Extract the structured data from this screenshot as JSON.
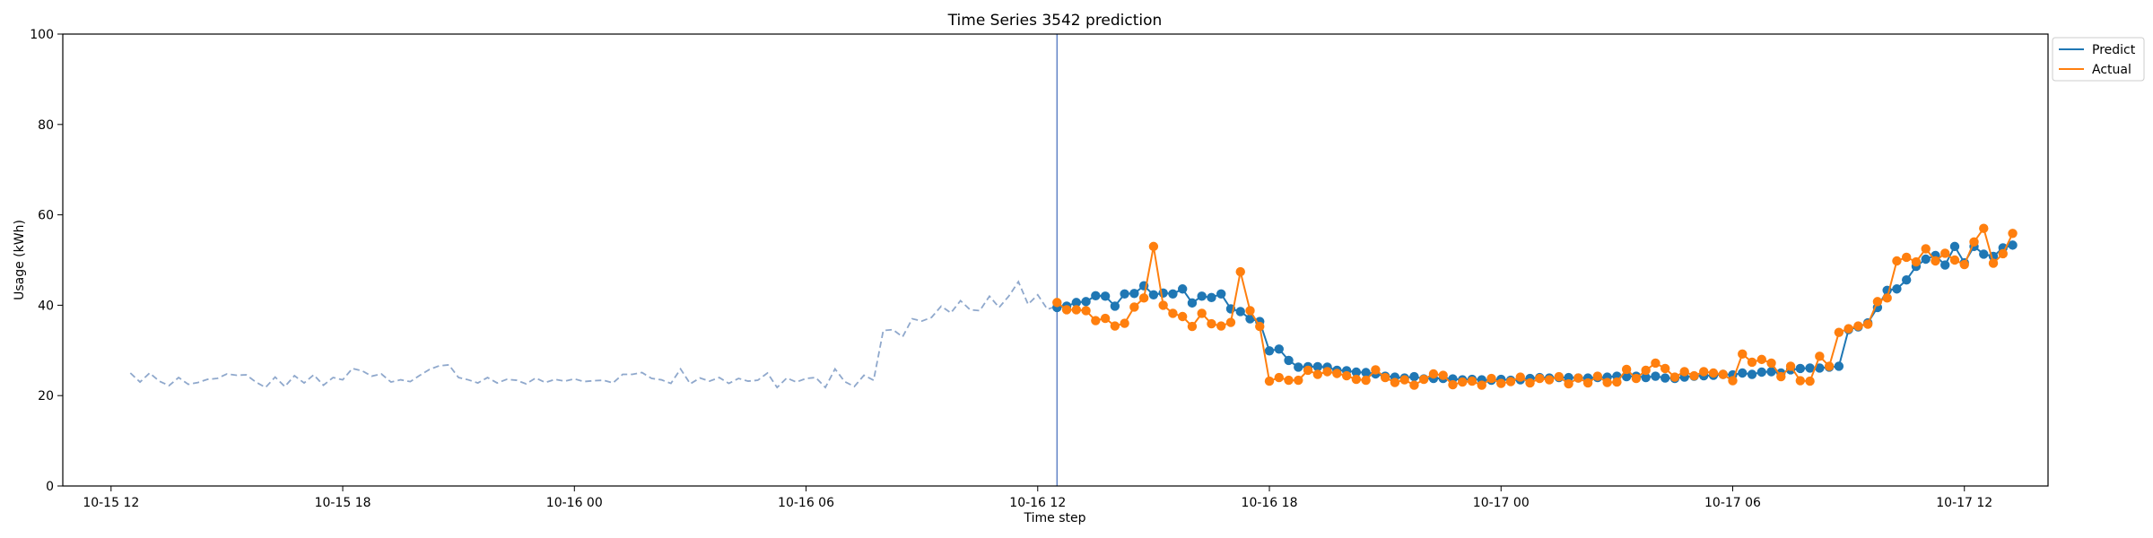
{
  "chart_data": {
    "type": "line",
    "title": "Time Series 3542 prediction",
    "xlabel": "Time step",
    "ylabel": "Usage (kWh)",
    "ylim": [
      0,
      100
    ],
    "x_range": [
      "2023-10-15T10:45",
      "2023-10-17T14:10"
    ],
    "x_ticks": [
      {
        "t": "2023-10-15T12:00",
        "label": "10-15 12"
      },
      {
        "t": "2023-10-15T18:00",
        "label": "10-15 18"
      },
      {
        "t": "2023-10-16T00:00",
        "label": "10-16 00"
      },
      {
        "t": "2023-10-16T06:00",
        "label": "10-16 06"
      },
      {
        "t": "2023-10-16T12:00",
        "label": "10-16 12"
      },
      {
        "t": "2023-10-16T18:00",
        "label": "10-16 18"
      },
      {
        "t": "2023-10-17T00:00",
        "label": "10-17 00"
      },
      {
        "t": "2023-10-17T06:00",
        "label": "10-17 06"
      },
      {
        "t": "2023-10-17T12:00",
        "label": "10-17 12"
      }
    ],
    "y_ticks": [
      0,
      20,
      40,
      60,
      80,
      100
    ],
    "grid": false,
    "legend": "outside-top-right",
    "split_time": "2023-10-16T12:30",
    "history": {
      "start": "2023-10-15T12:30",
      "step_minutes": 15,
      "color": "#8fa8cc",
      "values": [
        25.0,
        23.0,
        25.0,
        23.2,
        22.2,
        24.0,
        22.5,
        22.9,
        23.6,
        23.8,
        24.8,
        24.5,
        24.6,
        23.0,
        21.8,
        24.1,
        22.0,
        24.4,
        22.8,
        24.6,
        22.3,
        24.0,
        23.5,
        26.0,
        25.5,
        24.3,
        24.8,
        23.0,
        23.5,
        23.1,
        24.5,
        25.8,
        26.6,
        26.8,
        24.0,
        23.5,
        22.8,
        24.0,
        22.8,
        23.6,
        23.4,
        22.6,
        23.9,
        22.9,
        23.6,
        23.2,
        23.7,
        23.1,
        23.3,
        23.4,
        22.8,
        24.7,
        24.7,
        25.1,
        23.8,
        23.5,
        22.7,
        25.9,
        22.6,
        23.9,
        23.2,
        24.0,
        22.7,
        23.8,
        23.2,
        23.4,
        25.0,
        21.8,
        23.9,
        23.0,
        23.8,
        24.0,
        21.8,
        25.9,
        23.1,
        22.0,
        24.5,
        23.4,
        34.4,
        34.6,
        33.0,
        37.0,
        36.5,
        37.3,
        39.8,
        38.3,
        41.0,
        39.0,
        38.8,
        42.0,
        39.5,
        42.0,
        45.2,
        40.2,
        42.3,
        39.1,
        39.8
      ]
    },
    "series": [
      {
        "name": "Predict",
        "color": "#1f77b4",
        "start": "2023-10-16T12:30",
        "step_minutes": 15,
        "values": [
          39.5,
          39.8,
          40.6,
          40.8,
          42.1,
          42.0,
          39.8,
          42.5,
          42.6,
          44.3,
          42.3,
          42.7,
          42.5,
          43.6,
          40.5,
          42.0,
          41.7,
          42.5,
          39.2,
          38.6,
          37.0,
          36.4,
          29.9,
          30.3,
          27.8,
          26.3,
          26.4,
          26.4,
          26.3,
          25.6,
          25.5,
          25.2,
          25.1,
          24.8,
          24.3,
          24.1,
          23.9,
          24.2,
          23.7,
          23.8,
          23.8,
          23.7,
          23.5,
          23.6,
          23.5,
          23.4,
          23.6,
          23.4,
          23.5,
          23.8,
          24.0,
          23.9,
          24.0,
          24.0,
          23.9,
          23.9,
          24.0,
          24.1,
          24.3,
          24.2,
          24.3,
          24.0,
          24.3,
          23.9,
          23.8,
          24.1,
          24.3,
          24.4,
          24.5,
          24.7,
          24.6,
          25.0,
          24.7,
          25.2,
          25.3,
          25.0,
          25.7,
          26.0,
          26.1,
          26.1,
          26.3,
          26.5,
          34.6,
          35.2,
          36.1,
          39.5,
          43.3,
          43.6,
          45.6,
          48.6,
          50.2,
          51.0,
          48.9,
          53.0,
          49.4,
          53.0,
          51.3,
          50.8,
          52.7,
          53.3
        ]
      },
      {
        "name": "Actual",
        "color": "#ff7f0e",
        "start": "2023-10-16T12:30",
        "step_minutes": 15,
        "values": [
          40.6,
          39.0,
          39.0,
          38.8,
          36.6,
          37.1,
          35.4,
          36.0,
          39.6,
          41.6,
          53.0,
          40.0,
          38.2,
          37.5,
          35.3,
          38.2,
          35.9,
          35.4,
          36.2,
          47.4,
          38.8,
          35.3,
          23.2,
          24.0,
          23.4,
          23.4,
          25.6,
          24.7,
          25.3,
          24.9,
          24.4,
          23.6,
          23.4,
          25.7,
          24.0,
          22.9,
          23.5,
          22.3,
          23.6,
          24.8,
          24.5,
          22.4,
          23.0,
          23.2,
          22.3,
          23.8,
          22.7,
          23.1,
          24.1,
          22.8,
          23.8,
          23.5,
          24.2,
          22.6,
          23.9,
          22.8,
          24.3,
          22.9,
          23.0,
          25.8,
          23.8,
          25.6,
          27.2,
          26.0,
          24.1,
          25.3,
          24.4,
          25.3,
          25.0,
          24.7,
          23.3,
          29.2,
          27.4,
          28.0,
          27.2,
          24.2,
          26.5,
          23.3,
          23.2,
          28.7,
          26.5,
          34.0,
          34.8,
          35.4,
          35.8,
          40.8,
          41.6,
          49.8,
          50.6,
          49.6,
          52.5,
          49.8,
          51.5,
          50.0,
          49.0,
          54.0,
          57.0,
          49.3,
          51.4,
          55.9
        ]
      }
    ]
  }
}
